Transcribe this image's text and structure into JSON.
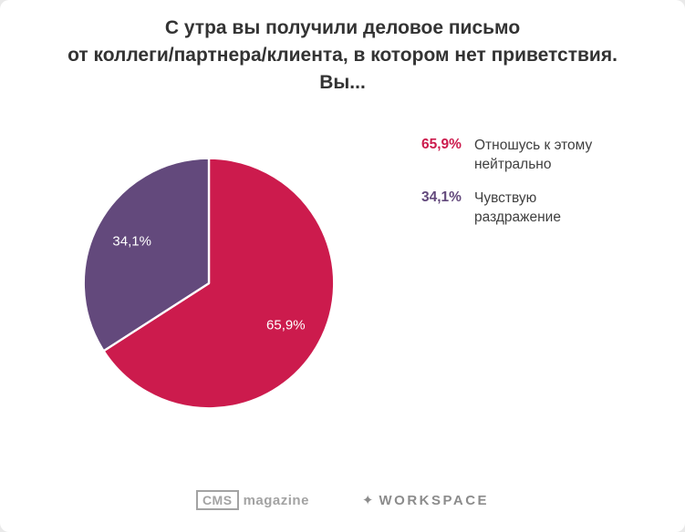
{
  "title": {
    "lines": [
      "С утра вы получили деловое письмо",
      "от коллеги/партнера/клиента, в котором нет приветствия.",
      "Вы..."
    ]
  },
  "chart_data": {
    "type": "pie",
    "title": "С утра вы получили деловое письмо от коллеги/партнера/клиента, в котором нет приветствия. Вы...",
    "slices": [
      {
        "label": "Отношусь к этому нейтрально",
        "value": 65.9,
        "display": "65,9%",
        "color": "#cc1b4d"
      },
      {
        "label": "Чувствую раздражение",
        "value": 34.1,
        "display": "34,1%",
        "color": "#63497c"
      }
    ],
    "start_angle_deg": 0,
    "direction": "clockwise",
    "legend_position": "right",
    "labels": "inside-percent"
  },
  "footer": {
    "cms_logo_box": "CMS",
    "cms_logo_text": "magazine",
    "workspace_logo_text": "WORKSPACE"
  }
}
